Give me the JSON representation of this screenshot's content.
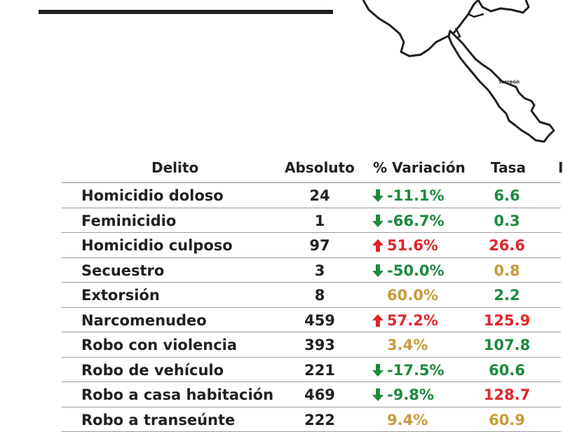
{
  "colors": {
    "green": "#1b8a3e",
    "red": "#e1262b",
    "amber": "#c99a3a",
    "text": "#231f20"
  },
  "map": {
    "label": "Torreón"
  },
  "table": {
    "headers": {
      "delito": "Delito",
      "absoluto": "Absoluto",
      "variacion": "% Variación",
      "tasa": "Tasa",
      "extra": "I"
    },
    "rows": [
      {
        "delito": "Homicidio doloso",
        "absoluto": "24",
        "variacion": "-11.1%",
        "trend": "down",
        "var_color": "green",
        "tasa": "6.6",
        "tasa_color": "green"
      },
      {
        "delito": "Feminicidio",
        "absoluto": "1",
        "variacion": "-66.7%",
        "trend": "down",
        "var_color": "green",
        "tasa": "0.3",
        "tasa_color": "green"
      },
      {
        "delito": "Homicidio culposo",
        "absoluto": "97",
        "variacion": "51.6%",
        "trend": "up",
        "var_color": "red",
        "tasa": "26.6",
        "tasa_color": "red"
      },
      {
        "delito": "Secuestro",
        "absoluto": "3",
        "variacion": "-50.0%",
        "trend": "down",
        "var_color": "green",
        "tasa": "0.8",
        "tasa_color": "amber"
      },
      {
        "delito": "Extorsión",
        "absoluto": "8",
        "variacion": "60.0%",
        "trend": "none",
        "var_color": "amber",
        "tasa": "2.2",
        "tasa_color": "green"
      },
      {
        "delito": "Narcomenudeo",
        "absoluto": "459",
        "variacion": "57.2%",
        "trend": "up",
        "var_color": "red",
        "tasa": "125.9",
        "tasa_color": "red"
      },
      {
        "delito": "Robo con violencia",
        "absoluto": "393",
        "variacion": "3.4%",
        "trend": "none",
        "var_color": "amber",
        "tasa": "107.8",
        "tasa_color": "green"
      },
      {
        "delito": "Robo de vehículo",
        "absoluto": "221",
        "variacion": "-17.5%",
        "trend": "down",
        "var_color": "green",
        "tasa": "60.6",
        "tasa_color": "green"
      },
      {
        "delito": "Robo a casa habitación",
        "absoluto": "469",
        "variacion": "-9.8%",
        "trend": "down",
        "var_color": "green",
        "tasa": "128.7",
        "tasa_color": "red"
      },
      {
        "delito": "Robo a transeúnte",
        "absoluto": "222",
        "variacion": "9.4%",
        "trend": "none",
        "var_color": "amber",
        "tasa": "60.9",
        "tasa_color": "amber"
      }
    ]
  }
}
